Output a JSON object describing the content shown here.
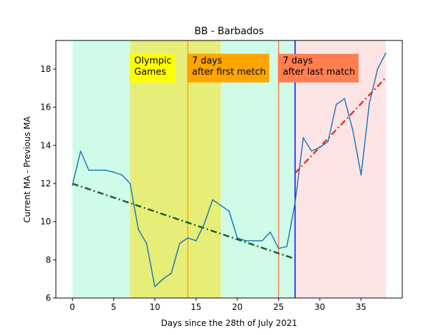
{
  "chart_data": {
    "type": "line",
    "title": "BB - Barbados",
    "xlabel": "Days since the 28th of July 2021",
    "ylabel": "Current MA - Previous MA",
    "xlim": [
      -2,
      40
    ],
    "ylim": [
      6,
      19.5
    ],
    "xticks": [
      0,
      5,
      10,
      15,
      20,
      25,
      30,
      35
    ],
    "yticks": [
      6,
      8,
      10,
      12,
      14,
      16,
      18
    ],
    "grid": false,
    "series": [
      {
        "color": "#1f77b4",
        "x": [
          0,
          1,
          2,
          3,
          4,
          5,
          6,
          7,
          8,
          9,
          10,
          11,
          12,
          13,
          14,
          15,
          16,
          17,
          18,
          19,
          20,
          21,
          22,
          23,
          24,
          25,
          26,
          27,
          28,
          29,
          30,
          31,
          32,
          33,
          34,
          35,
          36,
          37,
          38
        ],
        "y": [
          11.9,
          13.7,
          12.7,
          12.7,
          12.7,
          12.6,
          12.45,
          12.0,
          9.6,
          8.85,
          6.6,
          7.0,
          7.3,
          8.85,
          9.15,
          9.0,
          9.9,
          11.15,
          10.85,
          10.55,
          9.15,
          9.0,
          9.0,
          9.0,
          9.45,
          8.6,
          8.7,
          11.0,
          14.4,
          13.7,
          13.9,
          14.2,
          16.15,
          16.45,
          14.8,
          12.45,
          16.2,
          18.0,
          18.85
        ]
      }
    ],
    "trendlines": [
      {
        "color": "#1a5c2a",
        "style": "dash-dot",
        "x": [
          0,
          27
        ],
        "y": [
          12.0,
          8.05
        ]
      },
      {
        "color": "#d9392b",
        "style": "dash-dot",
        "x": [
          27,
          38
        ],
        "y": [
          12.55,
          17.55
        ]
      }
    ],
    "bands": [
      {
        "x0": 0,
        "x1": 7,
        "color": "#cffbe8"
      },
      {
        "x0": 7,
        "x1": 18,
        "color": "#e6ee78"
      },
      {
        "x0": 18,
        "x1": 27,
        "color": "#cffbe8"
      },
      {
        "x0": 27,
        "x1": 38,
        "color": "#fde4e4"
      }
    ],
    "vlines": [
      {
        "x": 14,
        "color": "#ffa500"
      },
      {
        "x": 25,
        "color": "#ff7f50"
      },
      {
        "x": 27,
        "color": "#0000ff"
      }
    ],
    "annotations": [
      {
        "lines": [
          "Olympic",
          "Games"
        ],
        "x": 7,
        "y": 17.3,
        "bg": "#ffff00"
      },
      {
        "lines": [
          "7 days",
          "after first metch"
        ],
        "x": 14,
        "y": 17.3,
        "bg": "#ffa500"
      },
      {
        "lines": [
          "7 days",
          "after last match"
        ],
        "x": 25,
        "y": 17.3,
        "bg": "#ff7f50"
      }
    ]
  }
}
